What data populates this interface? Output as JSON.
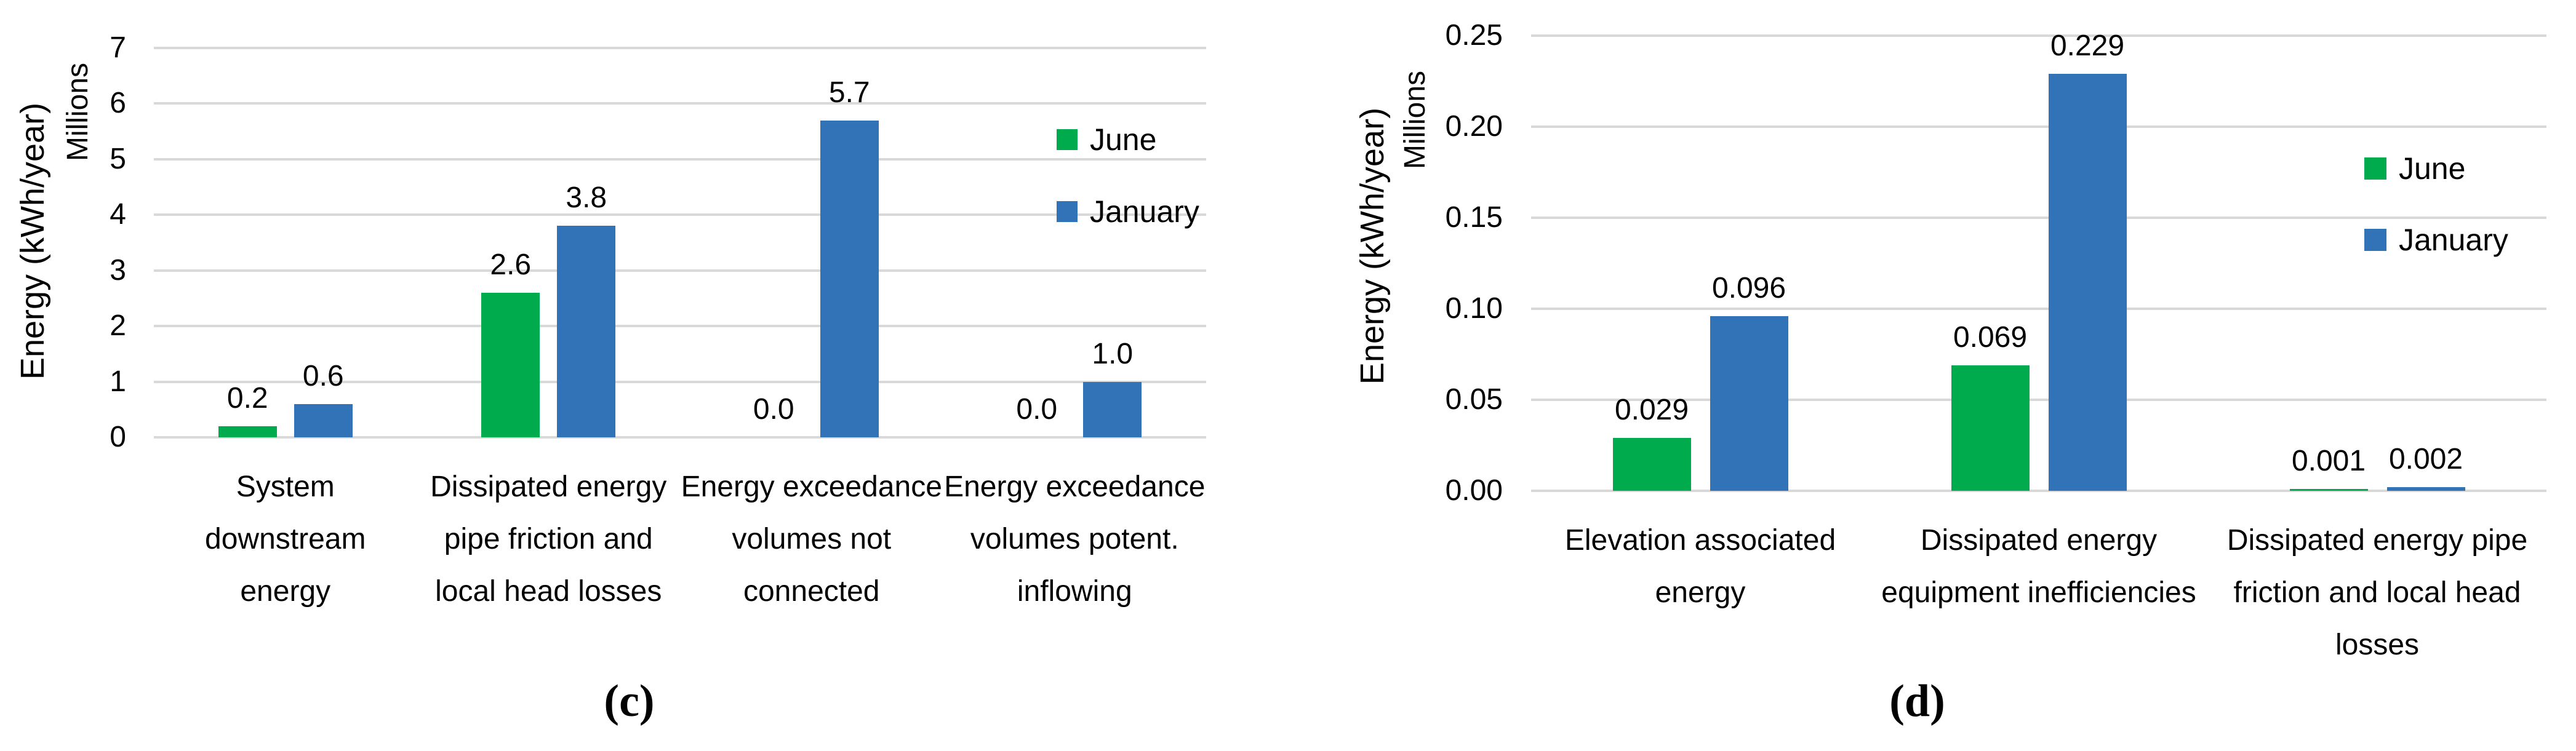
{
  "figure": {
    "background": "#FFFFFF",
    "gridline_color": "#D9D9D9",
    "text_color": "#000000"
  },
  "chart_data": [
    {
      "id": "c",
      "type": "bar",
      "caption": "(c)",
      "ylabel": "Energy (kWh/year)",
      "y_units_label": "Millions",
      "ylim": [
        0,
        7
      ],
      "ytick_labels": [
        "0",
        "1",
        "2",
        "3",
        "4",
        "5",
        "6",
        "7"
      ],
      "grid": true,
      "legend_position": "inside-top-right",
      "categories": [
        {
          "lines": [
            "System",
            "downstream",
            "energy"
          ]
        },
        {
          "lines": [
            "Dissipated energy",
            "pipe friction and",
            "local head losses"
          ]
        },
        {
          "lines": [
            "Energy exceedance",
            "volumes not",
            "connected"
          ]
        },
        {
          "lines": [
            "Energy exceedance",
            "volumes potent.",
            "inflowing"
          ]
        }
      ],
      "series": [
        {
          "name": "June",
          "color": "#00AB4E",
          "values": [
            0.2,
            2.6,
            0.0,
            0.0
          ],
          "labels": [
            "0.2",
            "2.6",
            "0.0",
            "0.0"
          ]
        },
        {
          "name": "January",
          "color": "#3173B6",
          "values": [
            0.6,
            3.8,
            5.7,
            1.0
          ],
          "labels": [
            "0.6",
            "3.8",
            "5.7",
            "1.0"
          ]
        }
      ]
    },
    {
      "id": "d",
      "type": "bar",
      "caption": "(d)",
      "ylabel": "Energy (kWh/year)",
      "y_units_label": "Millions",
      "ylim": [
        0,
        0.25
      ],
      "ytick_labels": [
        "0.00",
        "0.05",
        "0.10",
        "0.15",
        "0.20",
        "0.25"
      ],
      "grid": true,
      "legend_position": "inside-right",
      "categories": [
        {
          "lines": [
            "Elevation associated",
            "energy"
          ]
        },
        {
          "lines": [
            "Dissipated energy",
            "equipment inefficiencies"
          ]
        },
        {
          "lines": [
            "Dissipated energy pipe",
            "friction and local head",
            "losses"
          ]
        }
      ],
      "series": [
        {
          "name": "June",
          "color": "#00AB4E",
          "values": [
            0.029,
            0.069,
            0.001
          ],
          "labels": [
            "0.029",
            "0.069",
            "0.001"
          ]
        },
        {
          "name": "January",
          "color": "#3173B6",
          "values": [
            0.096,
            0.229,
            0.002
          ],
          "labels": [
            "0.096",
            "0.229",
            "0.002"
          ]
        }
      ]
    }
  ]
}
